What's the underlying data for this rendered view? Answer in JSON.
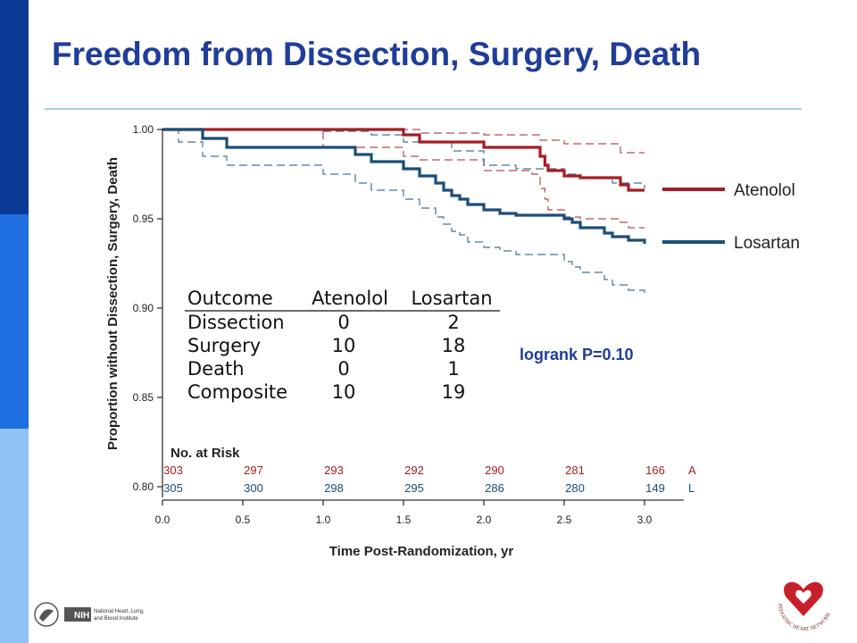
{
  "slide": {
    "title": "Freedom from Dissection, Surgery, Death",
    "colors": {
      "sidebar_dark": "#0b3a96",
      "sidebar_mid": "#1f6fe0",
      "sidebar_light": "#8fc3f5",
      "title": "#1f3d99",
      "rule": "#a9cde0"
    }
  },
  "chart_data": {
    "type": "line",
    "title": "",
    "xlabel": "Time Post-Randomization, yr",
    "ylabel": "Proportion without Dissection, Surgery, Death",
    "xlim": [
      0,
      3.25
    ],
    "ylim": [
      0.8,
      1.0
    ],
    "x_ticks": [
      "0.0",
      "0.5",
      "1.0",
      "1.5",
      "2.0",
      "2.5",
      "3.0"
    ],
    "y_ticks": [
      "1.00",
      "0.95",
      "0.90",
      "0.85",
      "0.80"
    ],
    "grid": false,
    "legend_position": "right",
    "step": true,
    "series": [
      {
        "name": "Atenolol",
        "color": "#a31f24",
        "x": [
          0,
          1.0,
          1.5,
          1.6,
          2.0,
          2.3,
          2.35,
          2.38,
          2.4,
          2.5,
          2.6,
          2.85,
          2.9,
          3.0
        ],
        "y": [
          1.0,
          1.0,
          0.997,
          0.993,
          0.99,
          0.99,
          0.985,
          0.98,
          0.977,
          0.974,
          0.973,
          0.969,
          0.966,
          0.966
        ],
        "ci_lower_x": [
          0,
          1.0,
          1.5,
          1.6,
          2.0,
          2.3,
          2.35,
          2.38,
          2.4,
          2.5,
          2.6,
          2.85,
          2.9,
          3.0
        ],
        "ci_lower": [
          1.0,
          0.99,
          0.985,
          0.983,
          0.977,
          0.975,
          0.967,
          0.961,
          0.955,
          0.951,
          0.95,
          0.948,
          0.945,
          0.945
        ],
        "ci_upper_x": [
          0,
          1.0,
          1.5,
          1.6,
          2.0,
          2.3,
          2.35,
          2.5,
          2.85,
          3.0
        ],
        "ci_upper": [
          1.0,
          1.0,
          1.0,
          0.998,
          0.997,
          0.997,
          0.994,
          0.992,
          0.987,
          0.987
        ]
      },
      {
        "name": "Losartan",
        "color": "#1a4e7a",
        "x": [
          0,
          0.1,
          0.25,
          0.4,
          1.0,
          1.2,
          1.3,
          1.5,
          1.6,
          1.7,
          1.75,
          1.8,
          1.85,
          1.9,
          2.0,
          2.1,
          2.2,
          2.5,
          2.55,
          2.6,
          2.75,
          2.8,
          2.9,
          3.0
        ],
        "y": [
          1.0,
          1.0,
          0.995,
          0.99,
          0.99,
          0.986,
          0.982,
          0.978,
          0.974,
          0.97,
          0.966,
          0.963,
          0.961,
          0.958,
          0.955,
          0.953,
          0.952,
          0.95,
          0.948,
          0.945,
          0.942,
          0.94,
          0.938,
          0.936
        ],
        "ci_lower_x": [
          0,
          0.1,
          0.25,
          0.4,
          1.0,
          1.2,
          1.3,
          1.5,
          1.6,
          1.7,
          1.75,
          1.8,
          1.85,
          1.9,
          2.0,
          2.1,
          2.2,
          2.5,
          2.55,
          2.6,
          2.75,
          2.8,
          2.9,
          3.0
        ],
        "ci_lower": [
          1.0,
          0.993,
          0.985,
          0.98,
          0.975,
          0.97,
          0.966,
          0.961,
          0.956,
          0.951,
          0.947,
          0.943,
          0.941,
          0.937,
          0.934,
          0.932,
          0.93,
          0.926,
          0.923,
          0.92,
          0.916,
          0.913,
          0.91,
          0.908
        ],
        "ci_upper_x": [
          0,
          0.25,
          0.4,
          1.0,
          1.3,
          1.5,
          1.8,
          2.0,
          2.2,
          2.5,
          2.6,
          2.8,
          3.0
        ],
        "ci_upper": [
          1.0,
          1.0,
          1.0,
          0.999,
          0.997,
          0.993,
          0.988,
          0.98,
          0.978,
          0.975,
          0.973,
          0.97,
          0.967
        ]
      }
    ],
    "table": {
      "headers": [
        "Outcome",
        "Atenolol",
        "Losartan"
      ],
      "rows": [
        [
          "Dissection",
          "0",
          "2"
        ],
        [
          "Surgery",
          "10",
          "18"
        ],
        [
          "Death",
          "0",
          "1"
        ],
        [
          "Composite",
          "10",
          "19"
        ]
      ]
    },
    "annotation": "logrank P=0.10",
    "at_risk": {
      "label": "No. at Risk",
      "times": [
        0,
        0.5,
        1.0,
        1.5,
        2.0,
        2.5,
        3.0
      ],
      "rows": [
        {
          "tag": "A",
          "color": "#a31f24",
          "values": [
            "303",
            "297",
            "293",
            "292",
            "290",
            "281",
            "166"
          ]
        },
        {
          "tag": "L",
          "color": "#1a4e7a",
          "values": [
            "305",
            "300",
            "298",
            "295",
            "286",
            "280",
            "149"
          ]
        }
      ]
    }
  },
  "footer": {
    "nih_badge": "NIH",
    "institute_lines": [
      "National Heart, Lung,",
      "and Blood Institute"
    ],
    "network_seal_text": "PEDIATRIC HEART NETWORK"
  }
}
